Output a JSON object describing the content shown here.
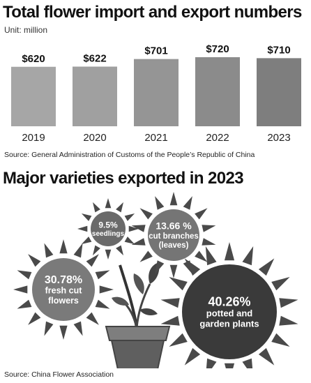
{
  "chart_data": [
    {
      "type": "bar",
      "title": "Total flower import and export numbers",
      "unit": "Unit: million",
      "categories": [
        "2019",
        "2020",
        "2021",
        "2022",
        "2023"
      ],
      "values": [
        620,
        622,
        701,
        720,
        710
      ],
      "value_labels": [
        "$620",
        "$622",
        "$701",
        "$720",
        "$710"
      ],
      "source": "Source: General Administration of Customs of the People’s Republic of China"
    },
    {
      "type": "bubble",
      "title": "Major varieties exported in 2023",
      "items": [
        {
          "value_label": "9.5%",
          "text": "seedlings",
          "value": 9.5
        },
        {
          "value_label": "13.66 %",
          "text": "cut branches (leaves)",
          "value": 13.66
        },
        {
          "value_label": "30.78%",
          "text": "fresh cut flowers",
          "value": 30.78
        },
        {
          "value_label": "40.26%",
          "text": "potted and garden plants",
          "value": 40.26
        }
      ],
      "source": "Source: China Flower Association"
    }
  ]
}
